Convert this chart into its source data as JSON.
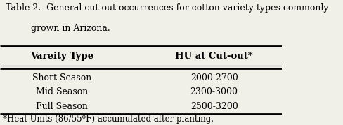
{
  "title_line1": "Table 2.  General cut-out occurrences for cotton variety types commonly",
  "title_line2": "grown in Arizona.",
  "col1_header": "Vareity Type",
  "col2_header": "HU at Cut-out*",
  "rows": [
    [
      "Short Season",
      "2000-2700"
    ],
    [
      "Mid Season",
      "2300-3000"
    ],
    [
      "Full Season",
      "2500-3200"
    ]
  ],
  "footnote": "*Heat Units (86/55ºF) accumulated after planting.",
  "bg_color": "#f0efe8",
  "text_color": "#000000",
  "title_fontsize": 9.0,
  "header_fontsize": 9.5,
  "data_fontsize": 9.0,
  "footnote_fontsize": 8.5
}
